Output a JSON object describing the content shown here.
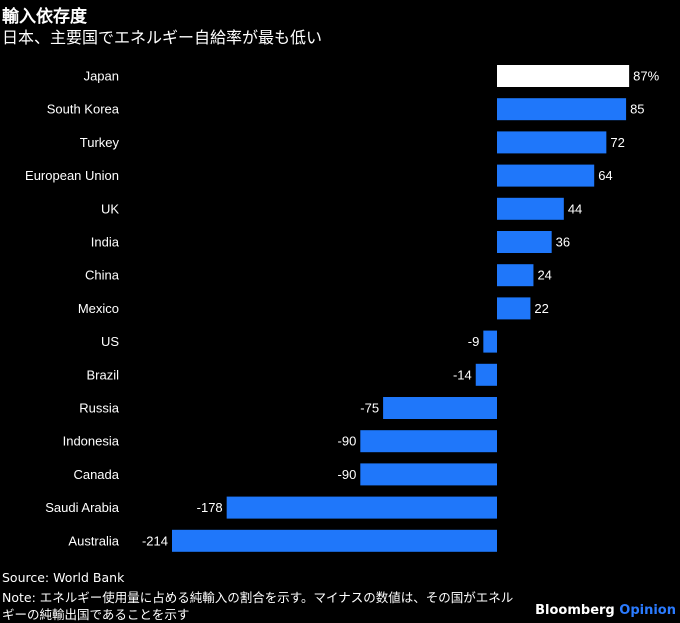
{
  "header": {
    "title": "輸入依存度",
    "subtitle": "日本、主要国でエネルギー自給率が最も低い"
  },
  "chart_data": {
    "type": "bar",
    "orientation": "horizontal",
    "categories": [
      "Japan",
      "South Korea",
      "Turkey",
      "European Union",
      "UK",
      "India",
      "China",
      "Mexico",
      "US",
      "Brazil",
      "Russia",
      "Indonesia",
      "Canada",
      "Saudi Arabia",
      "Australia"
    ],
    "values": [
      87,
      85,
      72,
      64,
      44,
      36,
      24,
      22,
      -9,
      -14,
      -75,
      -90,
      -90,
      -178,
      -214
    ],
    "labels": [
      "87%",
      "85",
      "72",
      "64",
      "44",
      "36",
      "24",
      "22",
      "-9",
      "-14",
      "-75",
      "-90",
      "-90",
      "-178",
      "-214"
    ],
    "highlight": "Japan",
    "colors": {
      "highlight": "#ffffff",
      "default": "#1f77fa"
    },
    "xlim": [
      -214,
      87
    ]
  },
  "footer": {
    "source": "Source: World Bank",
    "note_line1": "Note: エネルギー使用量に占める純輸入の割合を示す。マイナスの数値は、その国がエネル",
    "note_line2": "ギーの純輸出国であることを示す",
    "brand": "Bloomberg",
    "brand_accent": "Opinion"
  }
}
